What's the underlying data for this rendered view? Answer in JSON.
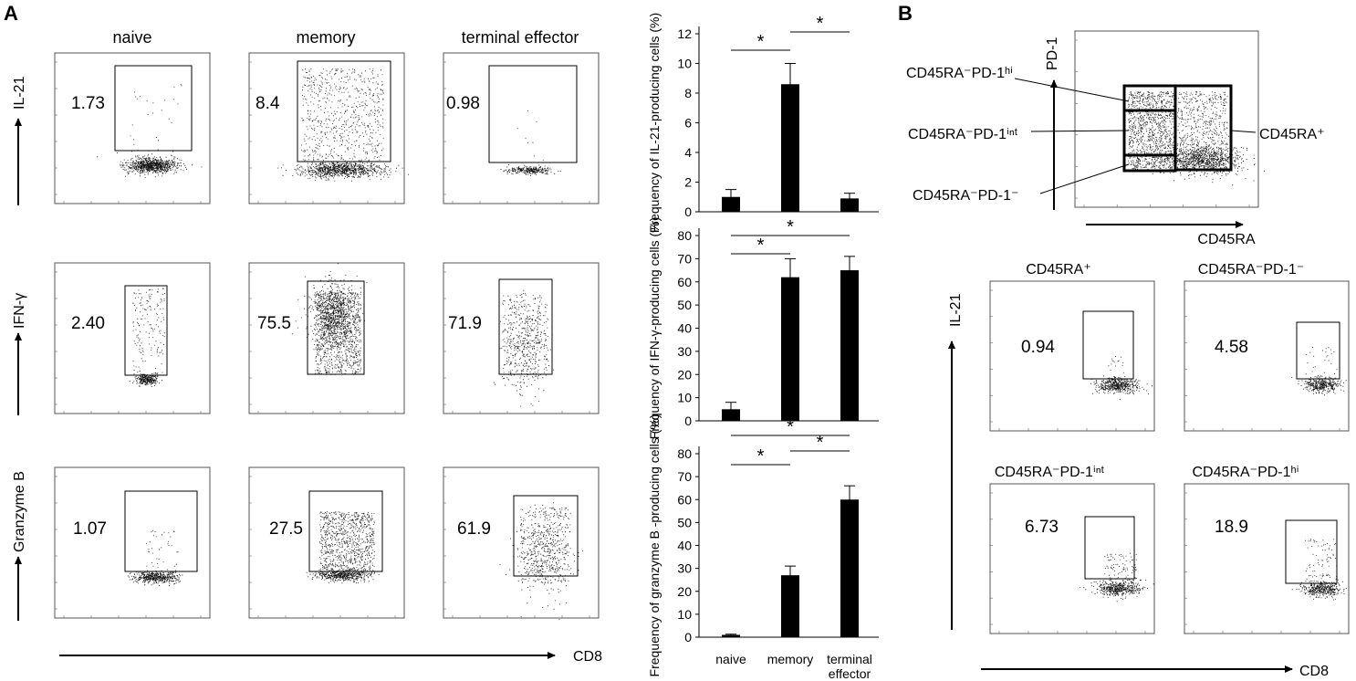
{
  "panel_labels": {
    "a": "A",
    "b": "B"
  },
  "panel_a": {
    "columns": [
      "naive",
      "memory",
      "terminal effector"
    ],
    "row_axis_labels": [
      "IL-21",
      "IFN-γ",
      "Granzyme B"
    ],
    "x_axis_label": "CD8",
    "gate_values": [
      [
        "1.73",
        "8.4",
        "0.98"
      ],
      [
        "2.40",
        "75.5",
        "71.9"
      ],
      [
        "1.07",
        "27.5",
        "61.9"
      ]
    ]
  },
  "panel_b": {
    "gating_plot": {
      "y_label": "PD-1",
      "x_label": "CD45RA",
      "populations": [
        "CD45RA⁻PD-1ʰⁱ",
        "CD45RA⁻PD-1ⁱⁿᵗ",
        "CD45RA⁻PD-1⁻",
        "CD45RA⁺"
      ]
    },
    "y_axis_label": "IL-21",
    "x_axis_label": "CD8",
    "subplots": [
      {
        "title": "CD45RA⁺",
        "value": "0.94"
      },
      {
        "title": "CD45RA⁻PD-1⁻",
        "value": "4.58"
      },
      {
        "title": "CD45RA⁻PD-1ⁱⁿᵗ",
        "value": "6.73"
      },
      {
        "title": "CD45RA⁻PD-1ʰⁱ",
        "value": "18.9"
      }
    ]
  },
  "chart_data": [
    {
      "type": "bar",
      "title": "",
      "ylabel": "Frequency of IL-21-producing cells (%)",
      "categories": [
        "naive",
        "memory",
        "terminal effector"
      ],
      "values": [
        1.0,
        8.6,
        0.9
      ],
      "errors": [
        0.5,
        1.4,
        0.35
      ],
      "ylim": [
        0,
        12
      ],
      "yticks": [
        0,
        2,
        4,
        6,
        8,
        10,
        12
      ],
      "significance": [
        {
          "from": 0,
          "to": 1,
          "label": "*"
        },
        {
          "from": 1,
          "to": 2,
          "label": "*"
        }
      ]
    },
    {
      "type": "bar",
      "title": "",
      "ylabel": "Frequency of IFN-γ-producing cells (%)",
      "categories": [
        "naive",
        "memory",
        "terminal effector"
      ],
      "values": [
        5,
        62,
        65
      ],
      "errors": [
        3,
        8,
        6
      ],
      "ylim": [
        0,
        80
      ],
      "yticks": [
        0,
        10,
        20,
        30,
        40,
        50,
        60,
        70,
        80
      ],
      "significance": [
        {
          "from": 0,
          "to": 1,
          "label": "*"
        },
        {
          "from": 0,
          "to": 2,
          "label": "*"
        }
      ]
    },
    {
      "type": "bar",
      "title": "",
      "ylabel": "Frequency of granzyme B -producing cells (%)",
      "categories": [
        "naive",
        "memory",
        "terminal effector"
      ],
      "values": [
        1,
        27,
        60
      ],
      "errors": [
        0.3,
        4,
        6
      ],
      "ylim": [
        0,
        80
      ],
      "yticks": [
        0,
        10,
        20,
        30,
        40,
        50,
        60,
        70,
        80
      ],
      "significance": [
        {
          "from": 0,
          "to": 1,
          "label": "*"
        },
        {
          "from": 1,
          "to": 2,
          "label": "*"
        },
        {
          "from": 0,
          "to": 2,
          "label": "*"
        }
      ]
    }
  ]
}
